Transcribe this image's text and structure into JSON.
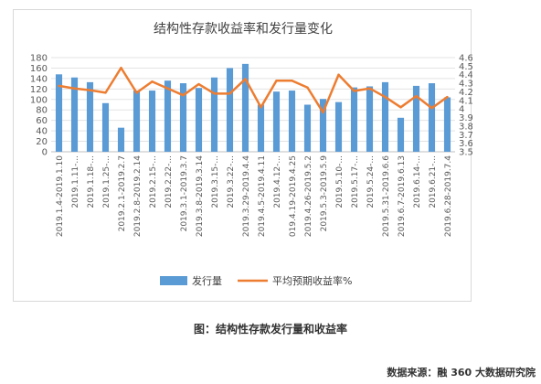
{
  "chart_data": {
    "type": "bar+line",
    "title": "结构性存款收益率和发行量变化",
    "categories": [
      "2019.1.4-2019.1.10",
      "2019.1.11-...",
      "2019.1.18-...",
      "2019.1.25-...",
      "2019.2.1-2019.2.7",
      "2019.2.8-2019.2.14",
      "2019.2.15-...",
      "2019.2.22-...",
      "2019.3.1-2019.3.7",
      "2019.3.8-2019.3.14",
      "2019.3.15-...",
      "2019.3.22-...",
      "2019.3.29-2019.4.4",
      "2019.4.5-2019.4.11",
      "2019.4.12-...",
      "019.4.19-2019.4.25",
      "2019.4.26-2019.5.2",
      "2019.5.3-2019.5.9",
      "2019.5.10-...",
      "2019.5.17-...",
      "2019.5.24-...",
      "2019.5.31-2019.6.6",
      "2019.6.7-2019.6.13",
      "2019.6.14-...",
      "2019.6.21-...",
      "2019.6.28-2019.7.4"
    ],
    "series": [
      {
        "name": "发行量",
        "type": "bar",
        "axis": "left",
        "color": "#5b9bd5",
        "values": [
          148,
          142,
          133,
          93,
          46,
          117,
          117,
          136,
          131,
          122,
          142,
          160,
          168,
          90,
          115,
          117,
          90,
          101,
          95,
          123,
          125,
          133,
          65,
          126,
          131,
          104
        ]
      },
      {
        "name": "平均预期收益率%",
        "type": "line",
        "axis": "right",
        "color": "#ed7d31",
        "values": [
          4.27,
          4.24,
          4.22,
          4.19,
          4.48,
          4.19,
          4.32,
          4.24,
          4.16,
          4.29,
          4.18,
          4.18,
          4.35,
          4.02,
          4.33,
          4.33,
          4.25,
          3.96,
          4.4,
          4.21,
          4.24,
          4.14,
          4.02,
          4.15,
          4.01,
          4.14
        ]
      }
    ],
    "left_axis": {
      "min": 0,
      "max": 180,
      "step": 20,
      "ticks": [
        "0",
        "20",
        "40",
        "60",
        "80",
        "100",
        "120",
        "140",
        "160",
        "180"
      ]
    },
    "right_axis": {
      "min": 3.5,
      "max": 4.6,
      "step": 0.1,
      "ticks": [
        "3.5",
        "3.6",
        "3.7",
        "3.8",
        "3.9",
        "4",
        "4.1",
        "4.2",
        "4.3",
        "4.4",
        "4.5",
        "4.6"
      ]
    },
    "gridlines": true,
    "legend_position": "bottom"
  },
  "caption": "图：结构性存款发行量和收益率",
  "source": "数据来源：融 360 大数据研究院"
}
